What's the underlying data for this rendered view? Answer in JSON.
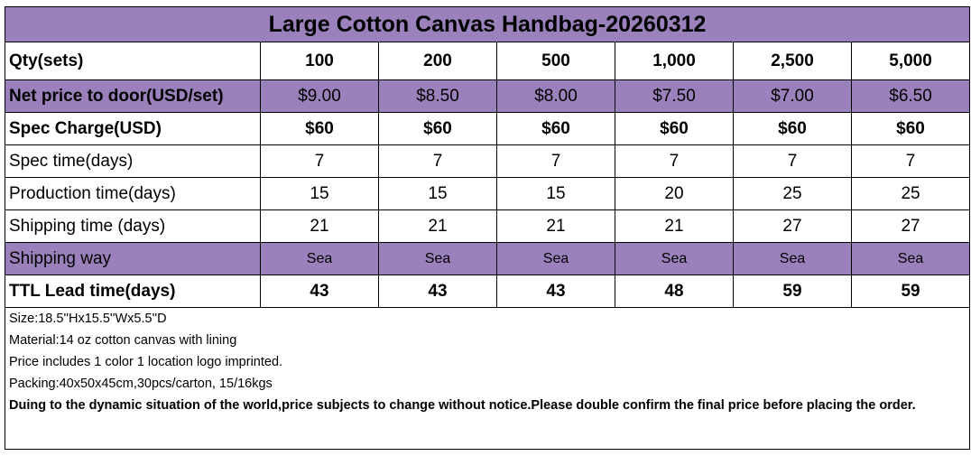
{
  "title": "Large Cotton Canvas Handbag-20260312",
  "colors": {
    "header_purple": "#9a81bb"
  },
  "rows": [
    {
      "label": "Qty(sets)",
      "values": [
        "100",
        "200",
        "500",
        "1,000",
        "2,500",
        "5,000"
      ]
    },
    {
      "label": "Net price to door(USD/set)",
      "values": [
        "$9.00",
        "$8.50",
        "$8.00",
        "$7.50",
        "$7.00",
        "$6.50"
      ]
    },
    {
      "label": "Spec Charge(USD)",
      "values": [
        "$60",
        "$60",
        "$60",
        "$60",
        "$60",
        "$60"
      ]
    },
    {
      "label": "Spec time(days)",
      "values": [
        "7",
        "7",
        "7",
        "7",
        "7",
        "7"
      ]
    },
    {
      "label": "Production time(days)",
      "values": [
        "15",
        "15",
        "15",
        "20",
        "25",
        "25"
      ]
    },
    {
      "label": "Shipping time (days)",
      "values": [
        "21",
        "21",
        "21",
        "21",
        "27",
        "27"
      ]
    },
    {
      "label": "Shipping way",
      "values": [
        "Sea",
        "Sea",
        "Sea",
        "Sea",
        "Sea",
        "Sea"
      ]
    },
    {
      "label": "TTL Lead time(days)",
      "values": [
        "43",
        "43",
        "43",
        "48",
        "59",
        "59"
      ]
    }
  ],
  "notes": [
    "Size:18.5''Hx15.5''Wx5.5''D",
    "Material:14 oz cotton canvas with lining",
    "Price includes 1 color 1 location logo imprinted.",
    "Packing:40x50x45cm,30pcs/carton, 15/16kgs"
  ],
  "disclaimer": "Duing to the dynamic situation of the world,price subjects to change without notice.Please double confirm the final price before placing the order."
}
